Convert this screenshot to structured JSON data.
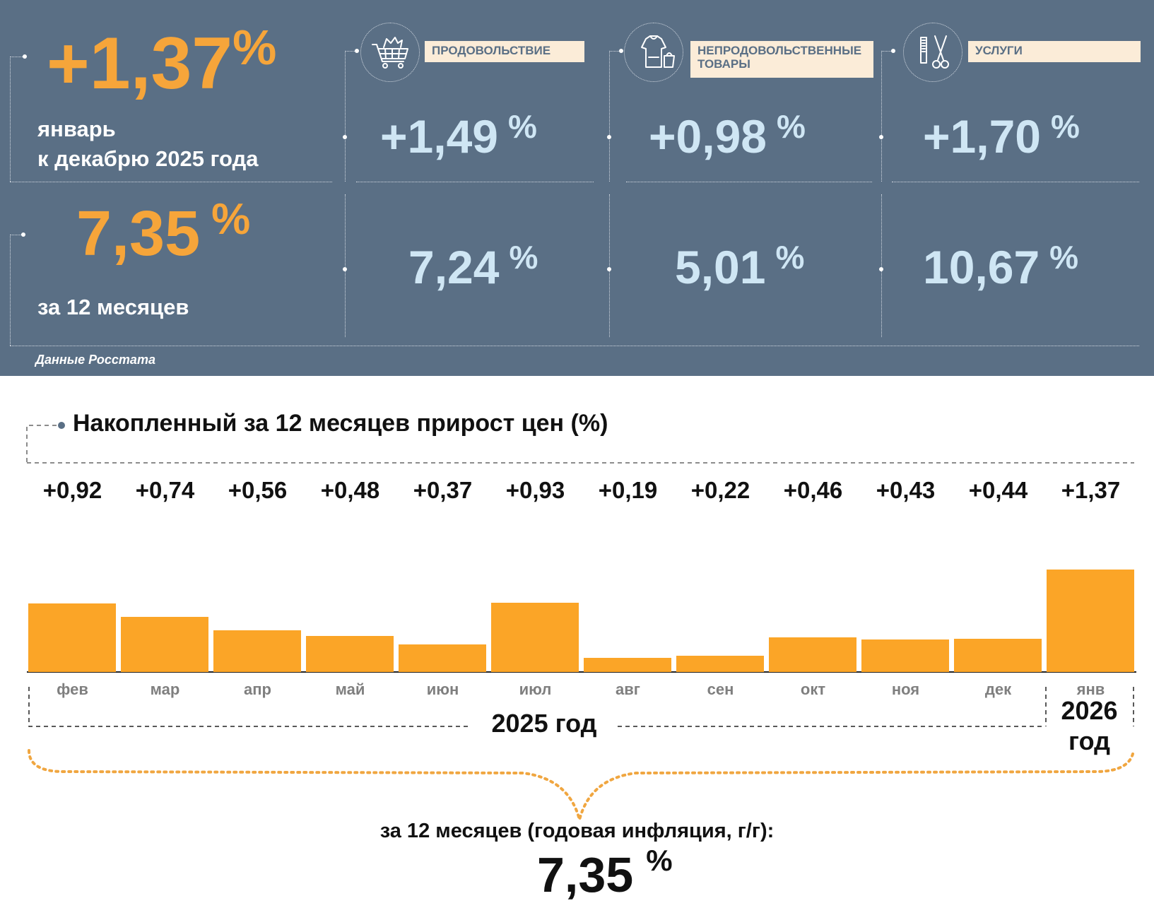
{
  "colors": {
    "panel": "#5a6f85",
    "orange": "#f6a53a",
    "bar": "#fba527",
    "light_blue": "#cfe6f4",
    "label_bg": "#fbecd8"
  },
  "header": {
    "monthly": {
      "value": "+1,37",
      "unit": "%",
      "caption_line1": "январь",
      "caption_line2": "к декабрю 2025 года"
    },
    "annual": {
      "value": "7,35",
      "unit": "%",
      "caption": "за 12 месяцев"
    },
    "categories": [
      {
        "label": "ПРОДОВОЛЬСТВИЕ",
        "icon": "shopping-cart-icon",
        "monthly": "+1,49",
        "annual": "7,24",
        "unit": "%"
      },
      {
        "label": "НЕПРОДОВОЛЬСТВЕННЫЕ ТОВАРЫ",
        "label_line1": "НЕПРОДОВОЛЬСТВЕННЫЕ",
        "label_line2": "ТОВАРЫ",
        "icon": "clothing-icon",
        "monthly": "+0,98",
        "annual": "5,01",
        "unit": "%"
      },
      {
        "label": "УСЛУГИ",
        "icon": "scissors-comb-icon",
        "monthly": "+1,70",
        "annual": "10,67",
        "unit": "%"
      }
    ],
    "source": "Данные Росстата"
  },
  "chart_data": {
    "type": "bar",
    "title": "Накопленный за 12 месяцев прирост цен (%)",
    "categories": [
      "фев",
      "мар",
      "апр",
      "май",
      "июн",
      "июл",
      "авг",
      "сен",
      "окт",
      "ноя",
      "дек",
      "янв"
    ],
    "values": [
      0.92,
      0.74,
      0.56,
      0.48,
      0.37,
      0.93,
      0.19,
      0.22,
      0.46,
      0.43,
      0.44,
      1.37
    ],
    "value_labels": [
      "+0,92",
      "+0,74",
      "+0,56",
      "+0,48",
      "+0,37",
      "+0,93",
      "+0,19",
      "+0,22",
      "+0,46",
      "+0,43",
      "+0,44",
      "+1,37"
    ],
    "year_groups": [
      {
        "label": "2025 год",
        "months": 11
      },
      {
        "label_line1": "2026",
        "label_line2": "год",
        "months": 1
      }
    ],
    "ylim": [
      0,
      1.37
    ],
    "grid": false,
    "summary_caption": "за 12 месяцев (годовая инфляция, г/г):",
    "summary_value": "7,35",
    "summary_unit": "%"
  }
}
